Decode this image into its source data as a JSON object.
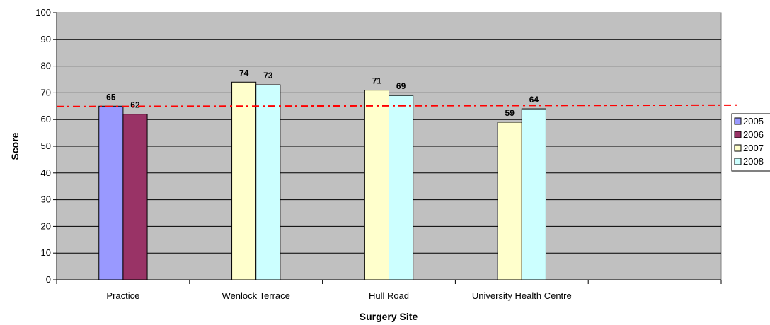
{
  "chart_data": {
    "type": "bar",
    "categories": [
      "Practice",
      "Wenlock Terrace",
      "Hull Road",
      "University Health Centre",
      ""
    ],
    "series": [
      {
        "name": "2005",
        "color": "#9999ff",
        "values": [
          65,
          null,
          null,
          null,
          null
        ]
      },
      {
        "name": "2006",
        "color": "#993366",
        "values": [
          62,
          null,
          null,
          null,
          null
        ]
      },
      {
        "name": "2007",
        "color": "#ffffcc",
        "values": [
          null,
          74,
          71,
          59,
          null
        ]
      },
      {
        "name": "2008",
        "color": "#ccffff",
        "values": [
          null,
          73,
          69,
          64,
          null
        ]
      }
    ],
    "xlabel": "Surgery Site",
    "ylabel": "Score",
    "ylim": [
      0,
      100
    ],
    "ytick_step": 10,
    "reference_line": {
      "value": 65,
      "color": "#ff0000",
      "style": "dash-dot"
    },
    "plot_background": "#c0c0c0",
    "grid": true,
    "legend_position": "right"
  }
}
